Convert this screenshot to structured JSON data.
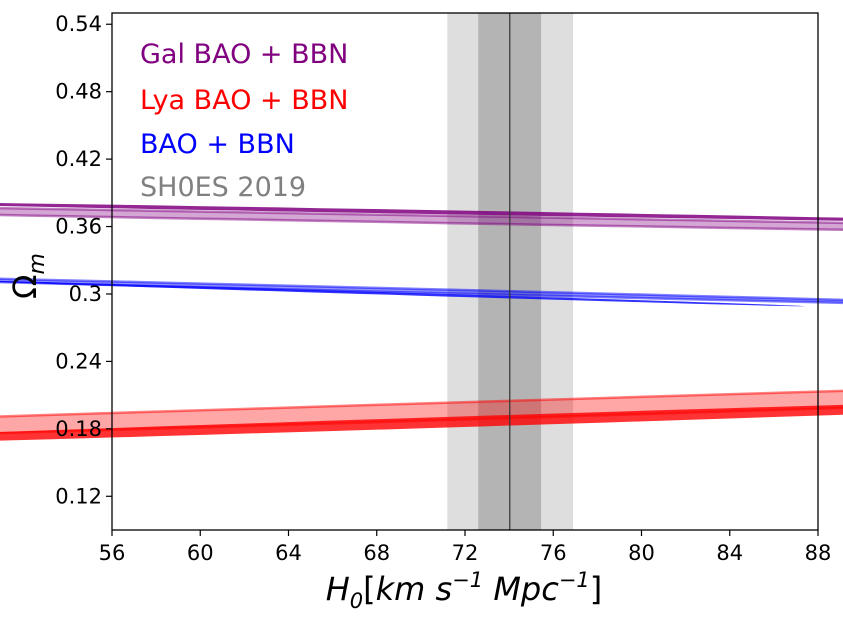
{
  "chart_data": {
    "type": "contour",
    "xlabel": {
      "main": "H",
      "sub": "0",
      "bracket_open": "[",
      "unit_km": "km s",
      "exp1": "−1",
      "unit_mpc": " Mpc",
      "exp2": "−1",
      "bracket_close": "]"
    },
    "ylabel": {
      "main": "Ω",
      "sub": "m"
    },
    "xlim": [
      56,
      88
    ],
    "ylim": [
      0.09,
      0.55
    ],
    "xticks": [
      56,
      60,
      64,
      68,
      72,
      76,
      80,
      84,
      88
    ],
    "yticks": [
      0.12,
      0.18,
      0.24,
      0.3,
      0.36,
      0.42,
      0.48,
      0.54
    ],
    "ytick_labels": [
      "0.12",
      "0.18",
      "0.24",
      "0.3",
      "0.36",
      "0.42",
      "0.48",
      "0.54"
    ],
    "legend": [
      {
        "label": "Gal BAO + BBN",
        "color": "#800080"
      },
      {
        "label": "Lya BAO + BBN",
        "color": "#ff0000"
      },
      {
        "label": "BAO + BBN",
        "color": "#0000ff"
      },
      {
        "label": "SH0ES 2019",
        "color": "#808080"
      }
    ],
    "shoes": {
      "center": 74.03,
      "sigma1": [
        72.6,
        75.45
      ],
      "sigma2": [
        71.2,
        76.9
      ]
    },
    "series": [
      {
        "name": "Lya BAO + BBN",
        "color": "#ff0000",
        "contours": [
          {
            "level": "2sigma",
            "center": [
              73.6,
              0.197
            ],
            "semi_major": 11.64,
            "semi_minor": 0.0535,
            "angle_deg": -25.0
          },
          {
            "level": "1sigma",
            "center": [
              74.6,
              0.188
            ],
            "semi_major": 6.88,
            "semi_minor": 0.0275,
            "angle_deg": -23.9
          }
        ]
      },
      {
        "name": "Gal BAO + BBN",
        "color": "#800080",
        "contours": [
          {
            "level": "2sigma",
            "center": [
              69.2,
              0.367
            ],
            "semi_major": 7.22,
            "semi_minor": 0.0268,
            "angle_deg": 39.0
          },
          {
            "level": "1sigma",
            "center": [
              70.2,
              0.373
            ],
            "semi_major": 3.98,
            "semi_minor": 0.0133,
            "angle_deg": 39.0
          }
        ]
      },
      {
        "name": "BAO + BBN",
        "color": "#0000ff",
        "contours": [
          {
            "level": "2sigma",
            "center": [
              67.45,
              0.304
            ],
            "semi_major": 2.94,
            "semi_minor": 0.0205,
            "angle_deg": 30.0
          },
          {
            "level": "1sigma",
            "center": [
              67.6,
              0.301
            ],
            "semi_major": 1.72,
            "semi_minor": 0.0132,
            "angle_deg": 25.0
          }
        ]
      }
    ]
  }
}
